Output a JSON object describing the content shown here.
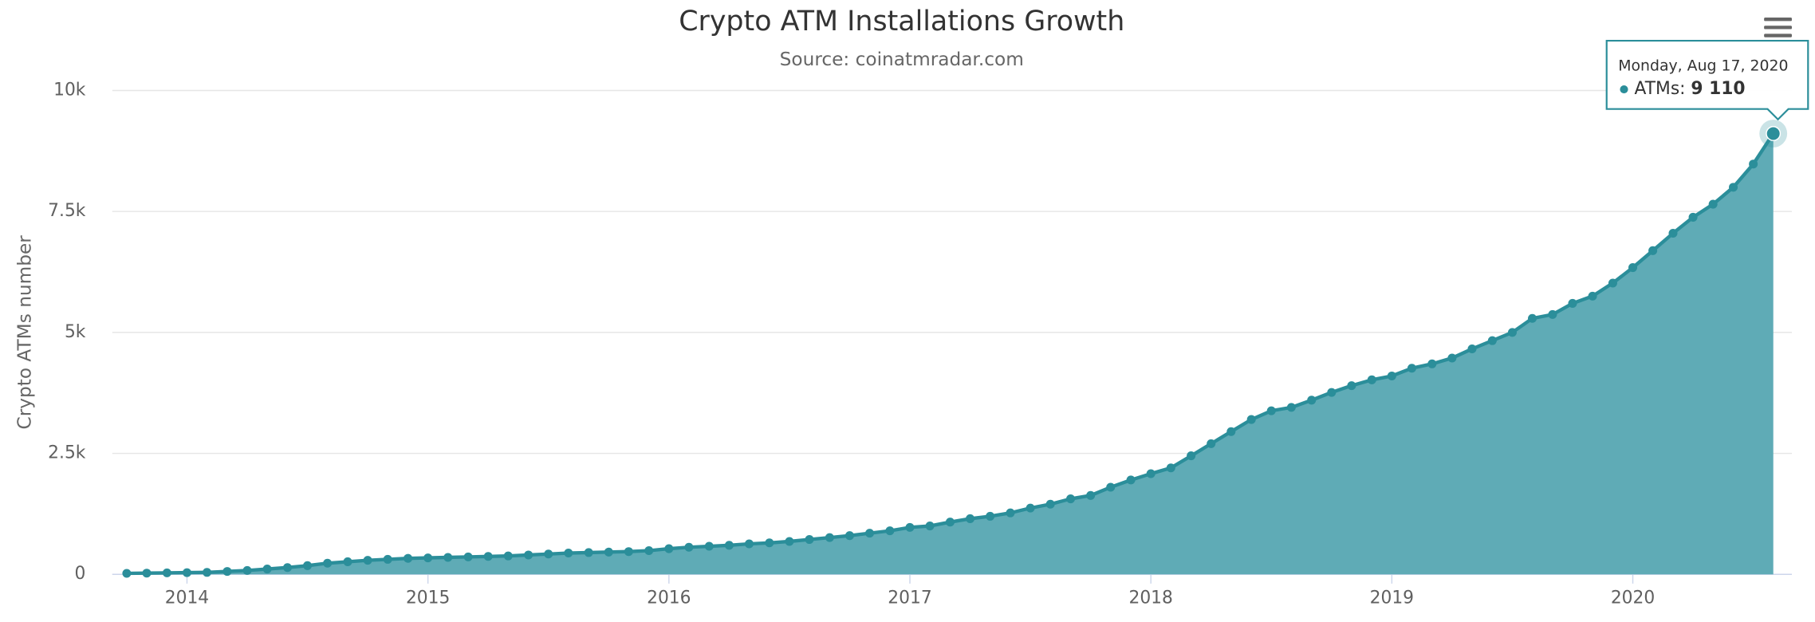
{
  "chart_data": {
    "type": "area",
    "title": "Crypto ATM Installations Growth",
    "subtitle": "Source: coinatmradar.com",
    "y_label": "Crypto ATMs number",
    "x": [
      2013.75,
      2013.833,
      2013.917,
      2014.0,
      2014.083,
      2014.167,
      2014.25,
      2014.333,
      2014.417,
      2014.5,
      2014.583,
      2014.667,
      2014.75,
      2014.833,
      2014.917,
      2015.0,
      2015.083,
      2015.167,
      2015.25,
      2015.333,
      2015.417,
      2015.5,
      2015.583,
      2015.667,
      2015.75,
      2015.833,
      2015.917,
      2016.0,
      2016.083,
      2016.167,
      2016.25,
      2016.333,
      2016.417,
      2016.5,
      2016.583,
      2016.667,
      2016.75,
      2016.833,
      2016.917,
      2017.0,
      2017.083,
      2017.167,
      2017.25,
      2017.333,
      2017.417,
      2017.5,
      2017.583,
      2017.667,
      2017.75,
      2017.833,
      2017.917,
      2018.0,
      2018.083,
      2018.167,
      2018.25,
      2018.333,
      2018.417,
      2018.5,
      2018.583,
      2018.667,
      2018.75,
      2018.833,
      2018.917,
      2019.0,
      2019.083,
      2019.167,
      2019.25,
      2019.333,
      2019.417,
      2019.5,
      2019.583,
      2019.667,
      2019.75,
      2019.833,
      2019.917,
      2020.0,
      2020.083,
      2020.167,
      2020.25,
      2020.333,
      2020.417,
      2020.5,
      2020.583
    ],
    "series": [
      {
        "name": "ATMs",
        "color": "#2b8e9a",
        "fill": "#5fabb6",
        "values": [
          20,
          25,
          30,
          35,
          40,
          60,
          80,
          110,
          140,
          180,
          230,
          260,
          290,
          310,
          330,
          340,
          350,
          360,
          370,
          380,
          400,
          420,
          440,
          450,
          460,
          470,
          490,
          530,
          560,
          580,
          600,
          630,
          650,
          680,
          720,
          760,
          800,
          850,
          900,
          970,
          1000,
          1080,
          1150,
          1200,
          1270,
          1370,
          1450,
          1560,
          1630,
          1800,
          1950,
          2080,
          2200,
          2450,
          2700,
          2950,
          3200,
          3380,
          3450,
          3600,
          3760,
          3900,
          4020,
          4100,
          4260,
          4350,
          4470,
          4660,
          4830,
          5000,
          5290,
          5370,
          5600,
          5750,
          6020,
          6340,
          6690,
          7050,
          7380,
          7650,
          8000,
          8480,
          9110
        ]
      }
    ],
    "xlim": [
      2013.69,
      2020.66
    ],
    "xticks": [
      2014,
      2015,
      2016,
      2017,
      2018,
      2019,
      2020
    ],
    "ylim": [
      0,
      10000
    ],
    "yticks": [
      0,
      {
        "value": 2500,
        "label": "2.5k"
      },
      {
        "value": 5000,
        "label": "5k"
      },
      {
        "value": 7500,
        "label": "7.5k"
      },
      {
        "value": 10000,
        "label": "10k"
      }
    ],
    "grid": true,
    "tooltip": {
      "header": "Monday, Aug 17, 2020",
      "name": "ATMs:",
      "value": 9110,
      "value_label": "9 110"
    }
  }
}
